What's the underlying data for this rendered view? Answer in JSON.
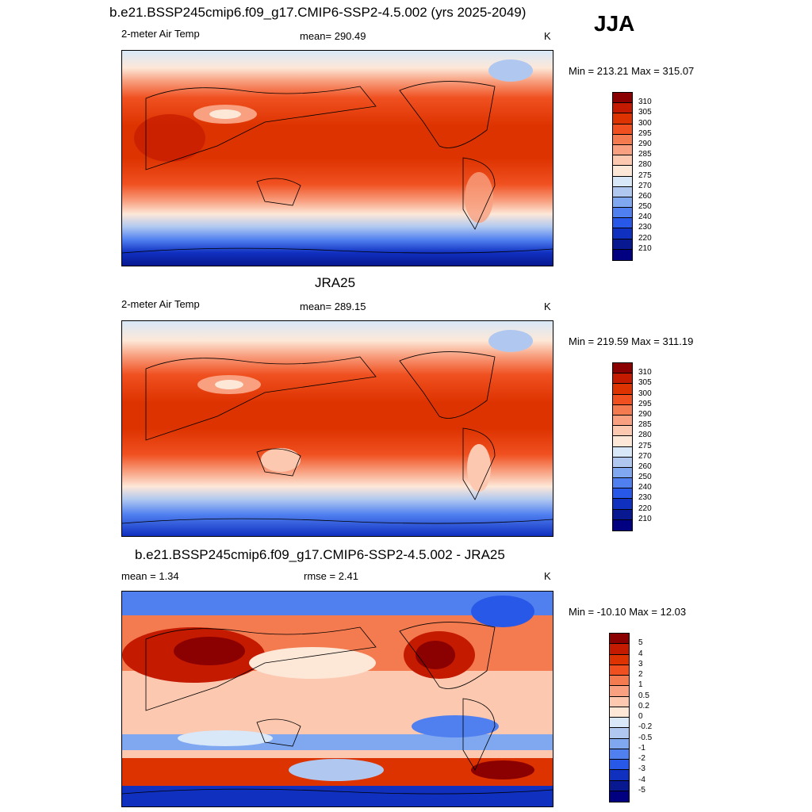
{
  "season": "JJA",
  "panels": [
    {
      "title": "b.e21.BSSP245cmip6.f09_g17.CMIP6-SSP2-4.5.002 (yrs 2025-2049)",
      "left_label": "2-meter Air Temp",
      "center_label": "mean= 290.49",
      "units": "K",
      "minmax": "Min = 213.21 Max = 315.07",
      "colorbar_labels": [
        "310",
        "305",
        "300",
        "295",
        "290",
        "285",
        "280",
        "275",
        "270",
        "260",
        "250",
        "240",
        "230",
        "220",
        "210"
      ],
      "colorbar_colors": [
        "#8b0000",
        "#c41a00",
        "#dd3300",
        "#f05020",
        "#f47a50",
        "#f8a080",
        "#fcc8b0",
        "#fde8d8",
        "#d8e8f8",
        "#b0c8f0",
        "#80a8f0",
        "#5080f0",
        "#2858e8",
        "#1030c0",
        "#081890",
        "#000080"
      ]
    },
    {
      "title": "JRA25",
      "left_label": "2-meter Air Temp",
      "center_label": "mean= 289.15",
      "units": "K",
      "minmax": "Min = 219.59 Max = 311.19",
      "colorbar_labels": [
        "310",
        "305",
        "300",
        "295",
        "290",
        "285",
        "280",
        "275",
        "270",
        "260",
        "250",
        "240",
        "230",
        "220",
        "210"
      ],
      "colorbar_colors": [
        "#8b0000",
        "#c41a00",
        "#dd3300",
        "#f05020",
        "#f47a50",
        "#f8a080",
        "#fcc8b0",
        "#fde8d8",
        "#d8e8f8",
        "#b0c8f0",
        "#80a8f0",
        "#5080f0",
        "#2858e8",
        "#1030c0",
        "#081890",
        "#000080"
      ]
    },
    {
      "title": "b.e21.BSSP245cmip6.f09_g17.CMIP6-SSP2-4.5.002 - JRA25",
      "left_label": "mean =   1.34",
      "center_label": "rmse =   2.41",
      "units": "K",
      "minmax": "Min = -10.10 Max =  12.03",
      "colorbar_labels": [
        "5",
        "4",
        "3",
        "2",
        "1",
        "0.5",
        "0.2",
        "0",
        "-0.2",
        "-0.5",
        "-1",
        "-2",
        "-3",
        "-4",
        "-5"
      ],
      "colorbar_colors": [
        "#8b0000",
        "#c41a00",
        "#dd3300",
        "#f05020",
        "#f47a50",
        "#f8a080",
        "#fcc8b0",
        "#fde8d8",
        "#d8e8f8",
        "#b0c8f0",
        "#80a8f0",
        "#5080f0",
        "#2858e8",
        "#1030c0",
        "#081890",
        "#000080"
      ]
    }
  ]
}
